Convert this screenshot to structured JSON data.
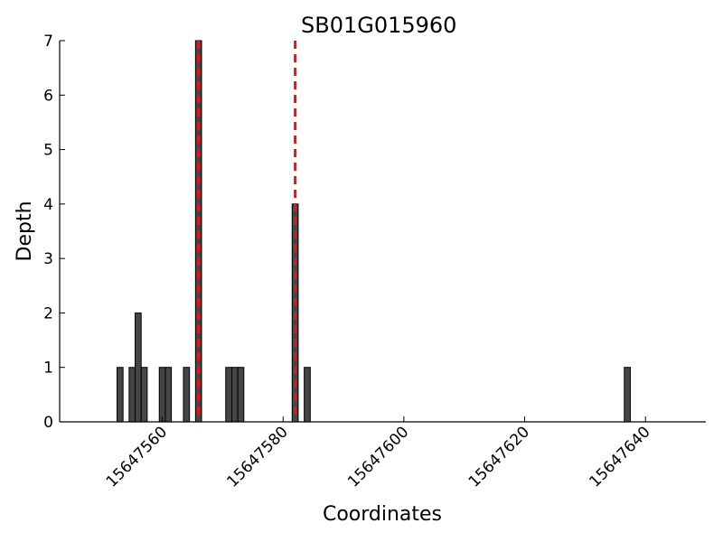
{
  "chart_data": {
    "type": "bar",
    "title": "SB01G015960",
    "xlabel": "Coordinates",
    "ylabel": "Depth",
    "xlim": [
      15647543,
      15647650
    ],
    "ylim": [
      0,
      7
    ],
    "x_ticks": [
      15647560,
      15647580,
      15647600,
      15647620,
      15647640
    ],
    "y_ticks": [
      0,
      1,
      2,
      3,
      4,
      5,
      6,
      7
    ],
    "bar_width": 1,
    "bar_color": "#454545",
    "marker_color": "#e8141a",
    "bars": [
      {
        "x": 15647553,
        "depth": 1
      },
      {
        "x": 15647555,
        "depth": 1
      },
      {
        "x": 15647556,
        "depth": 2
      },
      {
        "x": 15647557,
        "depth": 1
      },
      {
        "x": 15647560,
        "depth": 1
      },
      {
        "x": 15647561,
        "depth": 1
      },
      {
        "x": 15647564,
        "depth": 1
      },
      {
        "x": 15647566,
        "depth": 7
      },
      {
        "x": 15647571,
        "depth": 1
      },
      {
        "x": 15647572,
        "depth": 1
      },
      {
        "x": 15647573,
        "depth": 1
      },
      {
        "x": 15647582,
        "depth": 4
      },
      {
        "x": 15647584,
        "depth": 1
      },
      {
        "x": 15647637,
        "depth": 1
      }
    ],
    "markers": [
      15647566,
      15647582
    ]
  }
}
